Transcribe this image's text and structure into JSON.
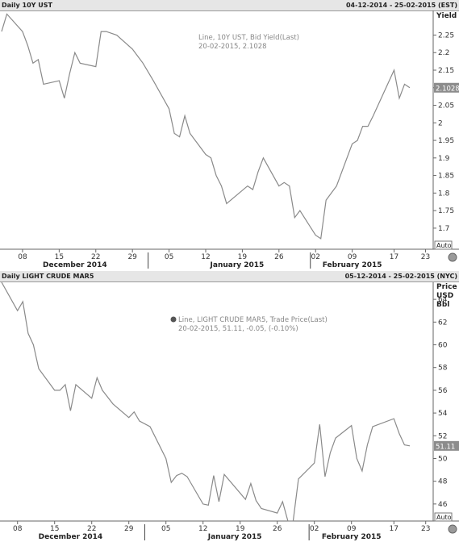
{
  "charts": [
    {
      "header": {
        "title": "Daily 10Y UST",
        "range": "04-12-2014 - 25-02-2015 (EST)"
      },
      "legend": {
        "line1": "Line, 10Y UST, Bid Yield(Last)",
        "line2": "20-02-2015, 2.1028",
        "has_icon": false
      },
      "last_label": "2.1028",
      "auto_label": "Auto",
      "axis_unit": [
        "Yield"
      ],
      "y_ticks": [
        "2.25",
        "2.2",
        "2.15",
        "2.1",
        "2.05",
        "2",
        "1.95",
        "1.9",
        "1.85",
        "1.8",
        "1.75",
        "1.7"
      ],
      "x_ticks": [
        "08",
        "15",
        "22",
        "29",
        "05",
        "12",
        "19",
        "26",
        "02",
        "09",
        "17",
        "23"
      ],
      "months": [
        "December 2014",
        "January 2015",
        "February 2015"
      ],
      "line_color": "#8a8a8a"
    },
    {
      "header": {
        "title": "Daily LIGHT CRUDE MAR5",
        "range": "05-12-2014 - 25-02-2015 (NYC)"
      },
      "legend": {
        "line1": "Line, LIGHT CRUDE MAR5, Trade Price(Last)",
        "line2": "20-02-2015, 51.11, -0.05, (-0.10%)",
        "has_icon": true
      },
      "last_label": "51.11",
      "auto_label": "Auto",
      "axis_unit": [
        "Price",
        "USD",
        "Bbl"
      ],
      "y_ticks": [
        "64",
        "62",
        "60",
        "58",
        "56",
        "54",
        "52",
        "50",
        "48",
        "46"
      ],
      "x_ticks": [
        "08",
        "15",
        "22",
        "29",
        "05",
        "12",
        "19",
        "26",
        "02",
        "09",
        "17",
        "23"
      ],
      "months": [
        "December 2014",
        "January 2015",
        "February 2015"
      ],
      "line_color": "#8a8a8a"
    }
  ],
  "chart_data": [
    {
      "type": "line",
      "title": "Daily 10Y UST",
      "ylabel": "Yield",
      "x_start": "2014-12-04",
      "x_end": "2015-02-25",
      "ylim": [
        1.64,
        2.32
      ],
      "series": [
        {
          "name": "10Y UST, Bid Yield(Last)",
          "points": [
            [
              "2014-12-04",
              2.26
            ],
            [
              "2014-12-05",
              2.31
            ],
            [
              "2014-12-08",
              2.26
            ],
            [
              "2014-12-09",
              2.22
            ],
            [
              "2014-12-10",
              2.17
            ],
            [
              "2014-12-11",
              2.18
            ],
            [
              "2014-12-12",
              2.11
            ],
            [
              "2014-12-15",
              2.12
            ],
            [
              "2014-12-16",
              2.07
            ],
            [
              "2014-12-17",
              2.14
            ],
            [
              "2014-12-18",
              2.2
            ],
            [
              "2014-12-19",
              2.17
            ],
            [
              "2014-12-22",
              2.16
            ],
            [
              "2014-12-23",
              2.26
            ],
            [
              "2014-12-24",
              2.26
            ],
            [
              "2014-12-26",
              2.25
            ],
            [
              "2014-12-29",
              2.21
            ],
            [
              "2014-12-30",
              2.19
            ],
            [
              "2014-12-31",
              2.17
            ],
            [
              "2015-01-02",
              2.12
            ],
            [
              "2015-01-05",
              2.04
            ],
            [
              "2015-01-06",
              1.97
            ],
            [
              "2015-01-07",
              1.96
            ],
            [
              "2015-01-08",
              2.02
            ],
            [
              "2015-01-09",
              1.97
            ],
            [
              "2015-01-12",
              1.91
            ],
            [
              "2015-01-13",
              1.9
            ],
            [
              "2015-01-14",
              1.85
            ],
            [
              "2015-01-15",
              1.82
            ],
            [
              "2015-01-16",
              1.77
            ],
            [
              "2015-01-20",
              1.82
            ],
            [
              "2015-01-21",
              1.81
            ],
            [
              "2015-01-22",
              1.86
            ],
            [
              "2015-01-23",
              1.9
            ],
            [
              "2015-01-26",
              1.82
            ],
            [
              "2015-01-27",
              1.83
            ],
            [
              "2015-01-28",
              1.82
            ],
            [
              "2015-01-29",
              1.73
            ],
            [
              "2015-01-30",
              1.75
            ],
            [
              "2015-02-02",
              1.68
            ],
            [
              "2015-02-03",
              1.67
            ],
            [
              "2015-02-04",
              1.78
            ],
            [
              "2015-02-05",
              1.8
            ],
            [
              "2015-02-06",
              1.82
            ],
            [
              "2015-02-09",
              1.94
            ],
            [
              "2015-02-10",
              1.95
            ],
            [
              "2015-02-11",
              1.99
            ],
            [
              "2015-02-12",
              1.99
            ],
            [
              "2015-02-13",
              2.02
            ],
            [
              "2015-02-17",
              2.15
            ],
            [
              "2015-02-18",
              2.07
            ],
            [
              "2015-02-19",
              2.11
            ],
            [
              "2015-02-20",
              2.1
            ]
          ]
        }
      ]
    },
    {
      "type": "line",
      "title": "Daily LIGHT CRUDE MAR5",
      "ylabel": "Price USD Bbl",
      "x_start": "2014-12-05",
      "x_end": "2015-02-25",
      "ylim": [
        44.5,
        65.5
      ],
      "series": [
        {
          "name": "LIGHT CRUDE MAR5, Trade Price(Last)",
          "points": [
            [
              "2014-12-05",
              65.5
            ],
            [
              "2014-12-08",
              63.0
            ],
            [
              "2014-12-09",
              63.8
            ],
            [
              "2014-12-10",
              61.0
            ],
            [
              "2014-12-11",
              60.0
            ],
            [
              "2014-12-12",
              57.9
            ],
            [
              "2014-12-15",
              56.0
            ],
            [
              "2014-12-16",
              56.0
            ],
            [
              "2014-12-17",
              56.5
            ],
            [
              "2014-12-18",
              54.2
            ],
            [
              "2014-12-19",
              56.5
            ],
            [
              "2014-12-22",
              55.3
            ],
            [
              "2014-12-23",
              57.1
            ],
            [
              "2014-12-24",
              56.0
            ],
            [
              "2014-12-26",
              54.8
            ],
            [
              "2014-12-29",
              53.6
            ],
            [
              "2014-12-30",
              54.1
            ],
            [
              "2014-12-31",
              53.3
            ],
            [
              "2015-01-02",
              52.8
            ],
            [
              "2015-01-05",
              50.0
            ],
            [
              "2015-01-06",
              47.9
            ],
            [
              "2015-01-07",
              48.5
            ],
            [
              "2015-01-08",
              48.7
            ],
            [
              "2015-01-09",
              48.4
            ],
            [
              "2015-01-12",
              46.0
            ],
            [
              "2015-01-13",
              45.9
            ],
            [
              "2015-01-14",
              48.5
            ],
            [
              "2015-01-15",
              46.2
            ],
            [
              "2015-01-16",
              48.6
            ],
            [
              "2015-01-20",
              46.4
            ],
            [
              "2015-01-21",
              47.8
            ],
            [
              "2015-01-22",
              46.3
            ],
            [
              "2015-01-23",
              45.6
            ],
            [
              "2015-01-26",
              45.2
            ],
            [
              "2015-01-27",
              46.2
            ],
            [
              "2015-01-28",
              44.5
            ],
            [
              "2015-01-29",
              44.5
            ],
            [
              "2015-01-30",
              48.2
            ],
            [
              "2015-02-02",
              49.6
            ],
            [
              "2015-02-03",
              53.0
            ],
            [
              "2015-02-04",
              48.4
            ],
            [
              "2015-02-05",
              50.5
            ],
            [
              "2015-02-06",
              51.8
            ],
            [
              "2015-02-09",
              52.9
            ],
            [
              "2015-02-10",
              50.0
            ],
            [
              "2015-02-11",
              48.9
            ],
            [
              "2015-02-12",
              51.2
            ],
            [
              "2015-02-13",
              52.8
            ],
            [
              "2015-02-17",
              53.5
            ],
            [
              "2015-02-18",
              52.2
            ],
            [
              "2015-02-19",
              51.2
            ],
            [
              "2015-02-20",
              51.11
            ]
          ]
        }
      ]
    }
  ]
}
